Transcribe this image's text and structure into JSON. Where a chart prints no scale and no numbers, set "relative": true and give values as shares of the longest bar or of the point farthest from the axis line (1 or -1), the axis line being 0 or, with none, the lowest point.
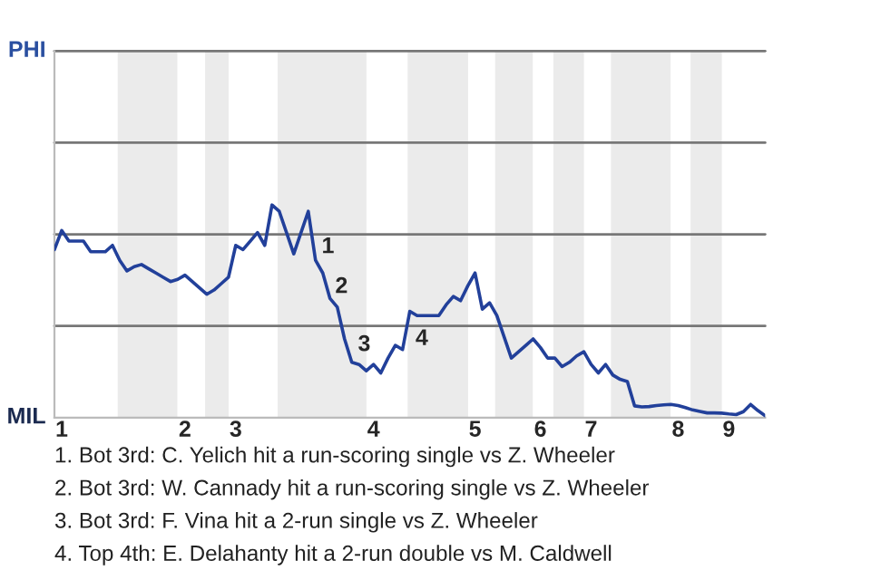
{
  "chart_data": {
    "type": "line",
    "categories": [
      null,
      "1",
      null,
      null,
      null,
      null,
      null,
      null,
      null,
      null,
      null,
      null,
      null,
      null,
      null,
      null,
      null,
      null,
      "2",
      null,
      null,
      null,
      null,
      null,
      null,
      "3",
      null,
      null,
      null,
      null,
      null,
      null,
      null,
      null,
      null,
      null,
      null,
      null,
      null,
      null,
      null,
      null,
      null,
      null,
      "4",
      null,
      null,
      null,
      null,
      null,
      null,
      null,
      null,
      null,
      null,
      null,
      null,
      null,
      "5",
      null,
      null,
      null,
      null,
      null,
      null,
      null,
      null,
      "6",
      null,
      null,
      null,
      null,
      null,
      null,
      "7",
      null,
      null,
      null,
      null,
      null,
      null,
      null,
      null,
      null,
      null,
      null,
      "8",
      null,
      null,
      null,
      null,
      null,
      null,
      "9",
      null,
      null,
      null,
      null,
      null
    ],
    "relative": true,
    "series": [
      {
        "color": "#22409a",
        "values": [
          0.79,
          0.88,
          0.83,
          0.83,
          0.83,
          0.78,
          0.78,
          0.78,
          0.81,
          0.74,
          0.69,
          0.71,
          0.72,
          0.7,
          0.68,
          0.66,
          0.64,
          0.65,
          0.67,
          0.64,
          0.61,
          0.58,
          0.6,
          0.63,
          0.66,
          0.81,
          0.79,
          0.83,
          0.87,
          0.81,
          1,
          0.97,
          0.87,
          0.77,
          0.87,
          0.97,
          0.74,
          0.68,
          0.56,
          0.52,
          0.37,
          0.26,
          0.25,
          0.22,
          0.25,
          0.21,
          0.28,
          0.34,
          0.32,
          0.5,
          0.48,
          0.48,
          0.48,
          0.48,
          0.53,
          0.57,
          0.55,
          0.62,
          0.68,
          0.51,
          0.54,
          0.48,
          0.38,
          0.28,
          0.31,
          0.34,
          0.37,
          0.33,
          0.28,
          0.28,
          0.24,
          0.26,
          0.29,
          0.31,
          0.25,
          0.21,
          0.25,
          0.2,
          0.18,
          0.17,
          0.055,
          0.05,
          0.052,
          0.057,
          0.06,
          0.062,
          0.057,
          0.047,
          0.036,
          0.029,
          0.022,
          0.022,
          0.021,
          0.017,
          0.014,
          0.028,
          0.062,
          0.033,
          0.009
        ]
      }
    ],
    "ref_lines": [
      {
        "axis": "y",
        "value": 0.431,
        "color": "#777777"
      },
      {
        "axis": "y",
        "value": 0.862,
        "color": "#777777"
      },
      {
        "axis": "y",
        "value": 1.293,
        "color": "#777777"
      },
      {
        "axis": "y",
        "value": 1.724,
        "color": "#777777"
      }
    ],
    "annotations": [
      "PHI",
      "MIL",
      "1",
      "2",
      "3",
      "4",
      "1. Bot 3rd: C. Yelich hit a run-scoring single vs Z. Wheeler",
      "2. Bot 3rd: W. Cannady hit a run-scoring single vs Z. Wheeler",
      "3. Bot 3rd: F. Vina hit a 2-run single vs Z. Wheeler",
      "4. Top 4th: E. Delahanty hit a 2-run double vs M. Caldwell"
    ]
  }
}
